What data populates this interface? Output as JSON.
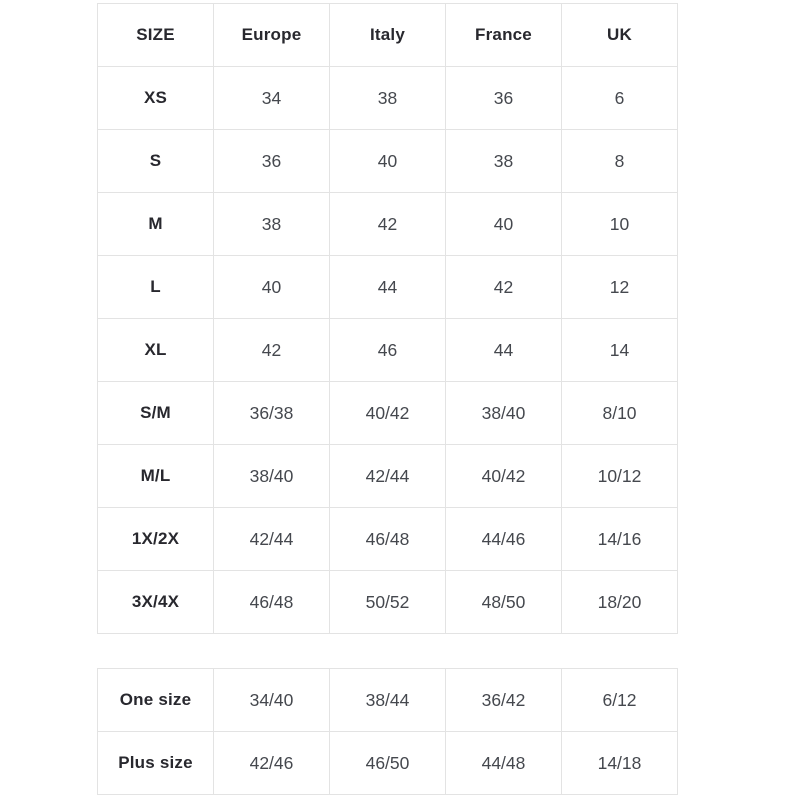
{
  "chart_data": [
    {
      "type": "table",
      "columns": [
        "SIZE",
        "Europe",
        "Italy",
        "France",
        "UK"
      ],
      "rows": [
        [
          "XS",
          "34",
          "38",
          "36",
          "6"
        ],
        [
          "S",
          "36",
          "40",
          "38",
          "8"
        ],
        [
          "M",
          "38",
          "42",
          "40",
          "10"
        ],
        [
          "L",
          "40",
          "44",
          "42",
          "12"
        ],
        [
          "XL",
          "42",
          "46",
          "44",
          "14"
        ],
        [
          "S/M",
          "36/38",
          "40/42",
          "38/40",
          "8/10"
        ],
        [
          "M/L",
          "38/40",
          "42/44",
          "40/42",
          "10/12"
        ],
        [
          "1X/2X",
          "42/44",
          "46/48",
          "44/46",
          "14/16"
        ],
        [
          "3X/4X",
          "46/48",
          "50/52",
          "48/50",
          "18/20"
        ]
      ]
    },
    {
      "type": "table",
      "columns": [],
      "rows": [
        [
          "One size",
          "34/40",
          "38/44",
          "36/42",
          "6/12"
        ],
        [
          "Plus size",
          "42/46",
          "46/50",
          "44/48",
          "14/18"
        ]
      ]
    }
  ],
  "colors": {
    "background": "#ffffff",
    "border": "#e3e3e3",
    "header_text": "#28282e",
    "value_text": "#45484e"
  }
}
